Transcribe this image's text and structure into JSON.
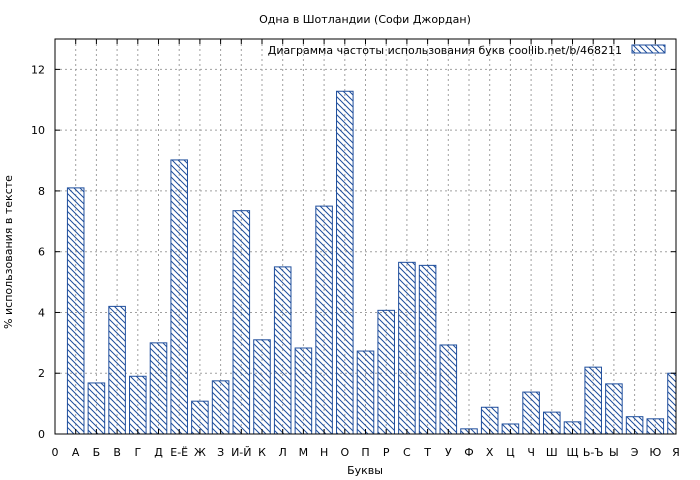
{
  "chart_data": {
    "type": "bar",
    "title": "Одна в Шотландии (Софи Джордан)",
    "xlabel": "Буквы",
    "ylabel": "% использования в тексте",
    "legend": {
      "label": "Диаграмма частоты использования букв  coollib.net/b/468211",
      "position": "top-right"
    },
    "categories": [
      "А",
      "Б",
      "В",
      "Г",
      "Д",
      "Е-Ё",
      "Ж",
      "З",
      "И-Й",
      "К",
      "Л",
      "М",
      "Н",
      "О",
      "П",
      "Р",
      "С",
      "Т",
      "У",
      "Ф",
      "Х",
      "Ц",
      "Ч",
      "Ш",
      "Щ",
      "Ь-Ъ",
      "Ы",
      "Э",
      "Ю",
      "Я"
    ],
    "x_ticks": [
      "0",
      "А",
      "Б",
      "В",
      "Г",
      "Д",
      "Е-Ё",
      "Ж",
      "З",
      "И-Й",
      "К",
      "Л",
      "М",
      "Н",
      "О",
      "П",
      "Р",
      "С",
      "Т",
      "У",
      "Ф",
      "Х",
      "Ц",
      "Ч",
      "Ш",
      "Щ",
      "Ь-Ъ",
      "Ы",
      "Э",
      "Ю",
      "Я"
    ],
    "values": [
      8.1,
      1.68,
      4.2,
      1.9,
      3.0,
      9.02,
      1.08,
      1.75,
      7.35,
      3.1,
      5.5,
      2.83,
      7.5,
      11.28,
      2.73,
      4.07,
      5.65,
      5.55,
      2.93,
      0.17,
      0.88,
      0.33,
      1.38,
      0.72,
      0.4,
      2.2,
      1.65,
      0.57,
      0.5,
      2.0
    ],
    "ylim": [
      0,
      13
    ],
    "yticks": [
      0,
      2,
      4,
      6,
      8,
      10,
      12
    ],
    "grid": true,
    "colors": {
      "bar": "#1f4e9c",
      "grid": "#a0a0a0",
      "axis": "#000000"
    }
  }
}
